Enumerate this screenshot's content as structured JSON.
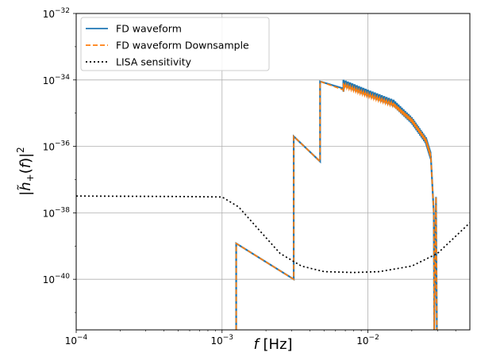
{
  "chart_data": {
    "type": "line",
    "x_scale": "log",
    "y_scale": "log",
    "xlim": [
      0.0001,
      0.05
    ],
    "ylim": [
      3e-42,
      1e-32
    ],
    "grid": true,
    "legend_position": "top-left",
    "xlabel": "f [Hz]",
    "ylabel": "|h̃+(f)|²",
    "x_ticks": [
      {
        "value": 0.0001,
        "base": "10",
        "exp": "−4"
      },
      {
        "value": 0.001,
        "base": "10",
        "exp": "−3"
      },
      {
        "value": 0.01,
        "base": "10",
        "exp": "−2"
      }
    ],
    "y_ticks": [
      {
        "value": 1e-32,
        "base": "10",
        "exp": "−32"
      },
      {
        "value": 1e-34,
        "base": "10",
        "exp": "−34"
      },
      {
        "value": 1e-36,
        "base": "10",
        "exp": "−36"
      },
      {
        "value": 1e-38,
        "base": "10",
        "exp": "−38"
      },
      {
        "value": 1e-40,
        "base": "10",
        "exp": "−40"
      }
    ],
    "series": [
      {
        "name": "FD waveform",
        "color": "#1f77b4",
        "style": "solid",
        "points": [
          [
            0.00125,
            3e-42
          ],
          [
            0.00125,
            1.2e-39
          ],
          [
            0.0031,
            1e-40
          ],
          [
            0.0031,
            2e-36
          ],
          [
            0.0047,
            3.5e-37
          ],
          [
            0.0047,
            9e-35
          ],
          [
            0.0068,
            5.5e-35
          ],
          [
            0.0068,
            8e-35
          ],
          [
            0.01,
            4e-35
          ],
          [
            0.015,
            2e-35
          ],
          [
            0.02,
            6e-36
          ],
          [
            0.025,
            1.5e-36
          ],
          [
            0.027,
            5e-37
          ],
          [
            0.0283,
            1e-38
          ],
          [
            0.0285,
            3e-42
          ],
          [
            0.0293,
            3e-38
          ],
          [
            0.0297,
            3e-42
          ]
        ]
      },
      {
        "name": "FD waveform Downsample",
        "color": "#ff7f0e",
        "style": "dashed",
        "points": [
          [
            0.00125,
            3e-42
          ],
          [
            0.00125,
            1.2e-39
          ],
          [
            0.0031,
            1e-40
          ],
          [
            0.0031,
            2e-36
          ],
          [
            0.0047,
            3.5e-37
          ],
          [
            0.0047,
            9e-35
          ],
          [
            0.0068,
            5e-35
          ],
          [
            0.0068,
            7e-35
          ],
          [
            0.01,
            3.5e-35
          ],
          [
            0.015,
            1.8e-35
          ],
          [
            0.02,
            6e-36
          ],
          [
            0.025,
            1.5e-36
          ],
          [
            0.027,
            5e-37
          ],
          [
            0.0283,
            1e-38
          ],
          [
            0.0285,
            3e-42
          ],
          [
            0.0293,
            3e-38
          ],
          [
            0.0297,
            3e-42
          ]
        ]
      },
      {
        "name": "LISA sensitivity",
        "color": "#000000",
        "style": "dotted",
        "points": [
          [
            0.0001,
            3.2e-38
          ],
          [
            0.0005,
            3.1e-38
          ],
          [
            0.001,
            3e-38
          ],
          [
            0.0013,
            1.5e-38
          ],
          [
            0.0018,
            3e-39
          ],
          [
            0.0025,
            6e-40
          ],
          [
            0.0035,
            2.5e-40
          ],
          [
            0.005,
            1.7e-40
          ],
          [
            0.008,
            1.6e-40
          ],
          [
            0.012,
            1.7e-40
          ],
          [
            0.02,
            2.5e-40
          ],
          [
            0.03,
            6e-40
          ],
          [
            0.05,
            5e-39
          ]
        ]
      }
    ]
  }
}
